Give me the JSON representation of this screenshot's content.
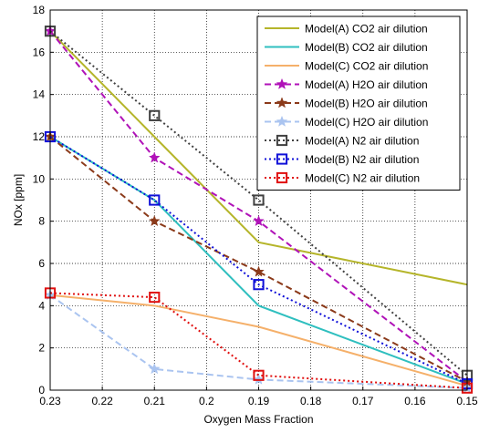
{
  "chart_data": {
    "type": "line",
    "xlabel": "Oxygen Mass Fraction",
    "ylabel": "NOx [ppm]",
    "x_reversed": true,
    "xlim": [
      0.15,
      0.23
    ],
    "ylim": [
      0,
      18
    ],
    "xticks": [
      "0.23",
      "0.22",
      "0.21",
      "0.2",
      "0.19",
      "0.18",
      "0.17",
      "0.16",
      "0.15"
    ],
    "xtick_values": [
      0.23,
      0.22,
      0.21,
      0.2,
      0.19,
      0.18,
      0.17,
      0.16,
      0.15
    ],
    "yticks": [
      "0",
      "2",
      "4",
      "6",
      "8",
      "10",
      "12",
      "14",
      "16",
      "18"
    ],
    "ytick_values": [
      0,
      2,
      4,
      6,
      8,
      10,
      12,
      14,
      16,
      18
    ],
    "grid": true,
    "legend_position": "top-right",
    "x": [
      0.23,
      0.21,
      0.19,
      0.15
    ],
    "series": [
      {
        "name": "Model(A) CO2 air dilution",
        "values": [
          17,
          12,
          7,
          5
        ],
        "color": "#b5b52a",
        "dash": "solid",
        "marker": "none"
      },
      {
        "name": "Model(B) CO2 air dilution",
        "values": [
          12,
          9,
          4,
          0.3
        ],
        "color": "#2fbfbf",
        "dash": "solid",
        "marker": "none"
      },
      {
        "name": "Model(C) CO2 air dilution",
        "values": [
          4.5,
          4,
          3,
          0.2
        ],
        "color": "#f5b06a",
        "dash": "solid",
        "marker": "none"
      },
      {
        "name": "Model(A) H2O air dilution",
        "values": [
          17,
          11,
          8,
          0.4
        ],
        "color": "#b012b8",
        "dash": "dash",
        "marker": "star"
      },
      {
        "name": "Model(B) H2O air dilution",
        "values": [
          12,
          8,
          5.6,
          0.4
        ],
        "color": "#8b3a1a",
        "dash": "dash",
        "marker": "star"
      },
      {
        "name": "Model(C) H2O air dilution",
        "values": [
          4.5,
          1,
          0.5,
          0.1
        ],
        "color": "#aac4f0",
        "dash": "dash",
        "marker": "star"
      },
      {
        "name": "Model(A) N2 air dilution",
        "values": [
          17,
          13,
          9,
          0.7
        ],
        "color": "#404040",
        "dash": "dot",
        "marker": "square"
      },
      {
        "name": "Model(B) N2 air dilution",
        "values": [
          12,
          9,
          5,
          0.3
        ],
        "color": "#1010d8",
        "dash": "dot",
        "marker": "square"
      },
      {
        "name": "Model(C) N2 air dilution",
        "values": [
          4.6,
          4.4,
          0.7,
          0.1
        ],
        "color": "#e01010",
        "dash": "dot",
        "marker": "square"
      }
    ]
  }
}
